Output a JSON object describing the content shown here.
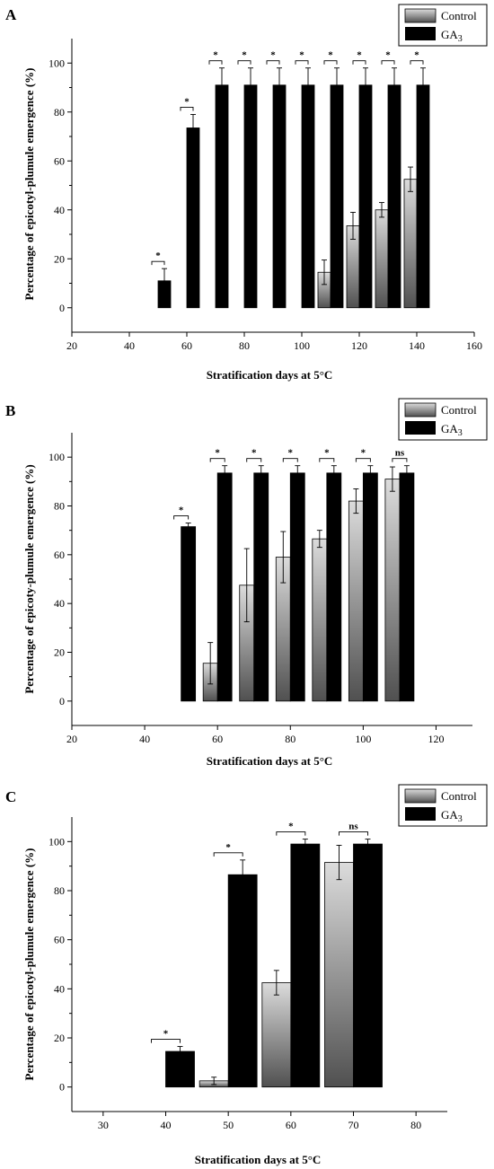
{
  "colors": {
    "control_light": "#dcdcdc",
    "control_dark": "#505050",
    "ga3": "#000000",
    "axis": "#000000"
  },
  "chart_data": [
    {
      "panel": "A",
      "type": "bar",
      "xlabel": "Stratification days at 5°C",
      "ylabel": "Percentage of epicotyl-plumule emergence (%)",
      "xlim": [
        20,
        160
      ],
      "ylim": [
        -10,
        110
      ],
      "xticks": [
        "20",
        "40",
        "60",
        "80",
        "100",
        "120",
        "140",
        "160"
      ],
      "yticks": [
        "0",
        "20",
        "40",
        "60",
        "80",
        "100"
      ],
      "legend": {
        "placement": "top-right",
        "labels": [
          "Control",
          "GA",
          "3"
        ]
      },
      "x": [
        30,
        40,
        50,
        60,
        70,
        80,
        90,
        100,
        110,
        120,
        130,
        140
      ],
      "series": [
        {
          "name": "Control",
          "values": [
            0,
            0,
            0,
            0,
            0,
            0,
            0,
            0,
            14.5,
            33.5,
            40,
            52.5
          ],
          "errors": [
            0,
            0,
            0,
            0,
            0,
            0,
            0,
            0,
            5,
            5.5,
            3,
            5
          ]
        },
        {
          "name": "GA3",
          "values": [
            0,
            0,
            11,
            73.5,
            91,
            91,
            91,
            91,
            91,
            91,
            91,
            91
          ],
          "errors": [
            0,
            0,
            5,
            5.5,
            7,
            7,
            7,
            7,
            7,
            7,
            7,
            7
          ]
        }
      ],
      "significance": [
        "",
        "",
        "*",
        "*",
        "*",
        "*",
        "*",
        "*",
        "*",
        "*",
        "*",
        "*"
      ]
    },
    {
      "panel": "B",
      "type": "bar",
      "xlabel": "Stratification days at 5°C",
      "ylabel": "Percentage of epicoty-plumule emergence (%)",
      "xlim": [
        20,
        130
      ],
      "ylim": [
        -10,
        110
      ],
      "xticks": [
        "20",
        "40",
        "60",
        "80",
        "100",
        "120"
      ],
      "yticks": [
        "0",
        "20",
        "40",
        "60",
        "80",
        "100"
      ],
      "legend": {
        "placement": "top-right",
        "labels": [
          "Control",
          "GA",
          "3"
        ]
      },
      "x": [
        30,
        40,
        50,
        60,
        70,
        80,
        90,
        100,
        110
      ],
      "series": [
        {
          "name": "Control",
          "values": [
            0,
            0,
            0,
            15.5,
            47.5,
            59,
            66.5,
            82,
            91
          ],
          "errors": [
            0,
            0,
            0,
            8.5,
            15,
            10.5,
            3.5,
            5,
            5
          ]
        },
        {
          "name": "GA3",
          "values": [
            0,
            0,
            71.5,
            93.5,
            93.5,
            93.5,
            93.5,
            93.5,
            93.5
          ],
          "errors": [
            0,
            0,
            1.5,
            3,
            3,
            3,
            3,
            3,
            3
          ]
        }
      ],
      "significance": [
        "",
        "",
        "*",
        "*",
        "*",
        "*",
        "*",
        "*",
        "ns"
      ]
    },
    {
      "panel": "C",
      "type": "bar",
      "xlabel": "Stratification days at 5°C",
      "ylabel": "Percentage of epicotyl-plumule emergence (%)",
      "xlim": [
        25,
        85
      ],
      "ylim": [
        -10,
        110
      ],
      "xticks": [
        "30",
        "40",
        "50",
        "60",
        "70",
        "80"
      ],
      "yticks": [
        "0",
        "20",
        "40",
        "60",
        "80",
        "100"
      ],
      "legend": {
        "placement": "top-right",
        "labels": [
          "Control",
          "GA",
          "3"
        ]
      },
      "x": [
        30,
        40,
        50,
        60,
        70
      ],
      "series": [
        {
          "name": "Control",
          "values": [
            0,
            0,
            2.5,
            42.5,
            91.5
          ],
          "errors": [
            0,
            0,
            1.5,
            5,
            7
          ]
        },
        {
          "name": "GA3",
          "values": [
            0,
            14.5,
            86.5,
            99,
            99
          ],
          "errors": [
            0,
            2,
            6,
            2,
            2
          ]
        }
      ],
      "significance": [
        "",
        "*",
        "*",
        "*",
        "ns"
      ]
    }
  ]
}
